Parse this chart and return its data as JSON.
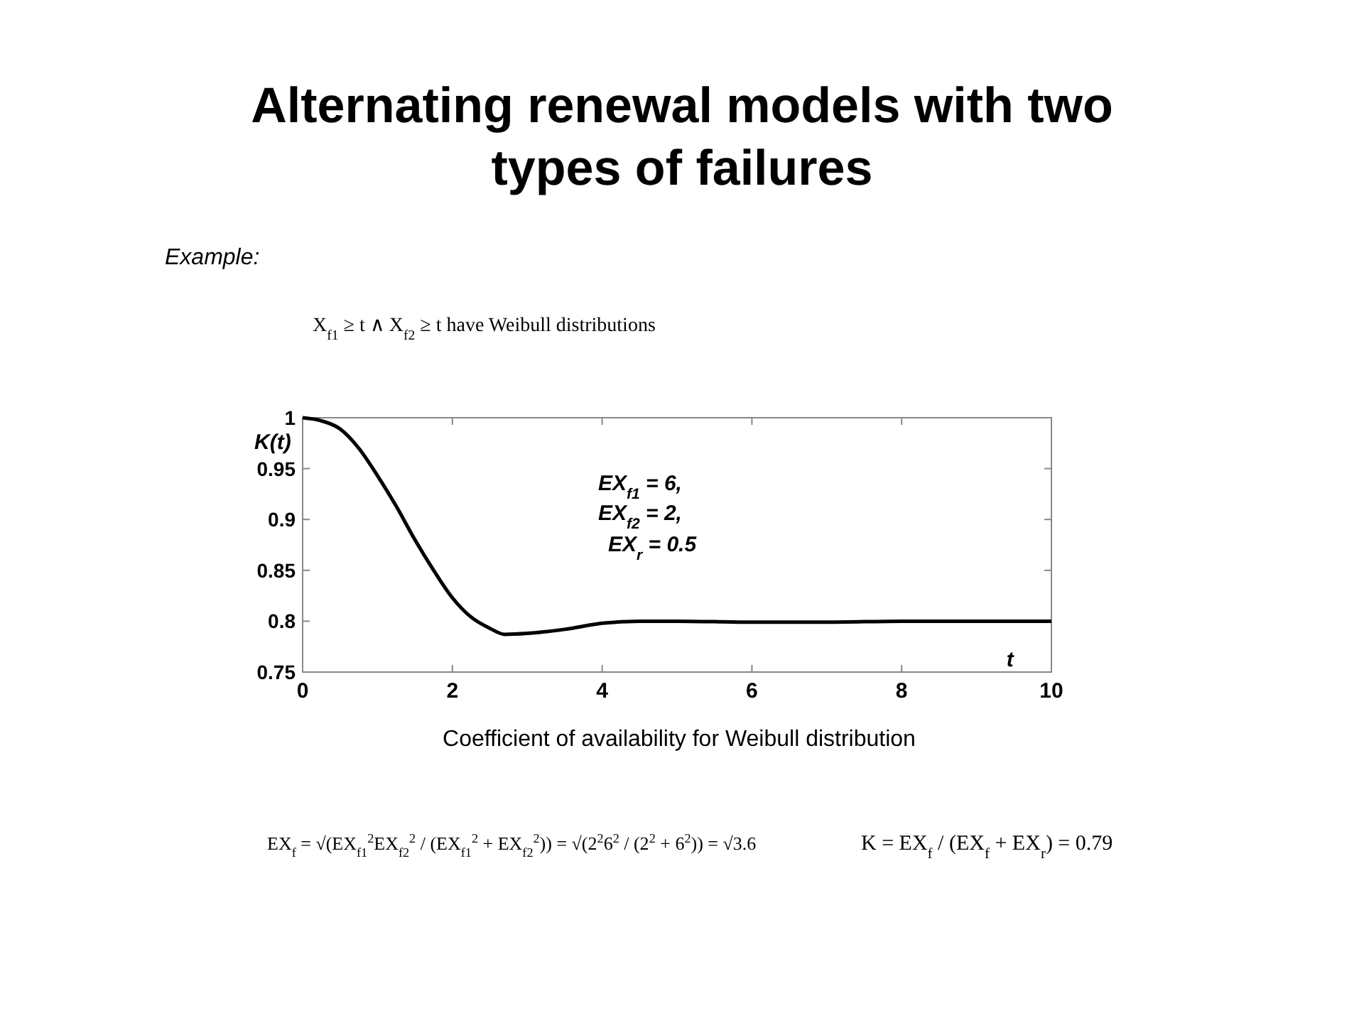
{
  "chart_data": {
    "type": "line",
    "title": "Alternating renewal models with two types of failures",
    "subtitle": "Example:",
    "xlabel": "t",
    "ylabel": "K(t)",
    "x": [
      0,
      0.25,
      0.5,
      0.75,
      1,
      1.25,
      1.5,
      1.75,
      2,
      2.25,
      2.5,
      2.7,
      3,
      3.5,
      4,
      4.5,
      5,
      6,
      7,
      8,
      9,
      10
    ],
    "series": [
      {
        "color": "#000000",
        "values": [
          1.0,
          0.997,
          0.989,
          0.97,
          0.943,
          0.913,
          0.88,
          0.85,
          0.823,
          0.804,
          0.793,
          0.787,
          0.788,
          0.792,
          0.798,
          0.8,
          0.8,
          0.799,
          0.799,
          0.8,
          0.8,
          0.8
        ]
      }
    ],
    "xlim": [
      0,
      10
    ],
    "xticks": [
      0,
      2,
      4,
      6,
      8,
      10
    ],
    "ylim": [
      0.75,
      1
    ],
    "yticks": [
      0.75,
      0.8,
      0.85,
      0.9,
      0.95,
      1
    ],
    "grid": false,
    "marker": "none",
    "line_style": "solid",
    "annotations": [
      "X$_{f1}$ ≥ t ∧ X$_{f2}$ ≥ t   have Weibull distributions",
      "EX$_{f1}$ = 6,",
      "EX$_{f2}$ = 2,",
      "EX$_{r}$ = 0.5",
      "Coefficient of availability for Weibull distribution",
      "EX$_{f}$ = √(EX$_{f1}$$^{2}$EX$_{f2}$$^{2}$ / (EX$_{f1}$$^{2}$ + EX$_{f2}$$^{2}$)) = √(2$^{2}$6$^{2}$ / (2$^{2}$ + 6$^{2}$)) = √3.6",
      "K = EX$_{f}$ / (EX$_{f}$ + EX$_{r}$) = 0.79"
    ]
  }
}
